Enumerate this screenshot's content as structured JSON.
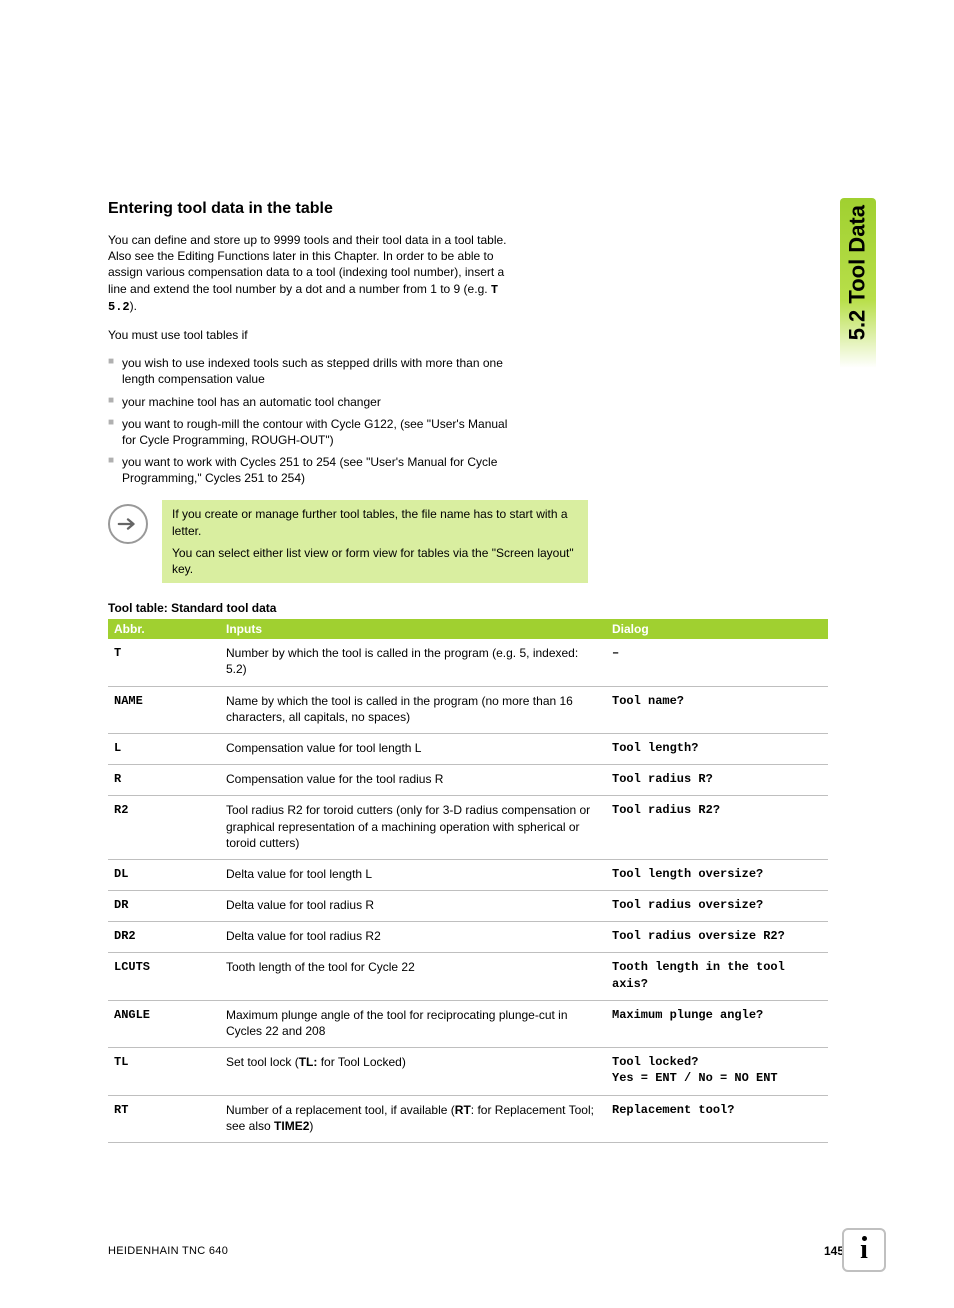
{
  "side_tab": "5.2 Tool Data",
  "section_title": "Entering tool data in the table",
  "intro_p1_a": "You can define and store up to 9999 tools and their tool data in a tool table. Also see the Editing Functions later in this Chapter. In order to be able to assign various compensation data to a tool (indexing tool number), insert a line and extend the tool number by a dot and a number from 1 to 9 (e.g. ",
  "intro_p1_mono": "T 5.2",
  "intro_p1_b": ").",
  "intro_p2": "You must use tool tables if",
  "bullets": [
    "you wish to use indexed tools such as stepped drills with more than one length compensation value",
    "your machine tool has an automatic tool changer",
    "you want to rough-mill the contour with Cycle G122, (see \"User's Manual for Cycle Programming, ROUGH-OUT\")",
    "you want to work with Cycles 251 to 254 (see \"User's Manual for Cycle Programming,\" Cycles 251 to 254)"
  ],
  "note_p1": "If you create or manage further tool tables, the file name has to start with a letter.",
  "note_p2": "You can select either list view or form view for tables via the \"Screen layout\" key.",
  "table_caption": "Tool table: Standard tool data",
  "table_headers": {
    "abbr": "Abbr.",
    "inputs": "Inputs",
    "dialog": "Dialog"
  },
  "rows": [
    {
      "abbr": "T",
      "inputs": "Number by which the tool is called in the program (e.g. 5, indexed: 5.2)",
      "dialog": "–"
    },
    {
      "abbr": "NAME",
      "inputs": "Name by which the tool is called in the program (no more than 16 characters, all capitals, no spaces)",
      "dialog": "Tool name?"
    },
    {
      "abbr": "L",
      "inputs": "Compensation value for tool length L",
      "dialog": "Tool length?"
    },
    {
      "abbr": "R",
      "inputs": "Compensation value for the tool radius R",
      "dialog": "Tool radius R?"
    },
    {
      "abbr": "R2",
      "inputs": "Tool radius R2 for toroid cutters (only for 3-D radius compensation or graphical representation of a machining operation with spherical or toroid cutters)",
      "dialog": "Tool radius R2?"
    },
    {
      "abbr": "DL",
      "inputs": "Delta value for tool length L",
      "dialog": "Tool length oversize?"
    },
    {
      "abbr": "DR",
      "inputs": "Delta value for tool radius R",
      "dialog": "Tool radius oversize?"
    },
    {
      "abbr": "DR2",
      "inputs": "Delta value for tool radius R2",
      "dialog": "Tool radius oversize R2?"
    },
    {
      "abbr": "LCUTS",
      "inputs": "Tooth length of the tool for Cycle 22",
      "dialog": "Tooth length in the tool axis?"
    },
    {
      "abbr": "ANGLE",
      "inputs": "Maximum plunge angle of the tool for reciprocating plunge-cut in Cycles 22 and 208",
      "dialog": "Maximum plunge angle?"
    },
    {
      "abbr": "TL",
      "inputs_html": "Set tool lock (<b>TL:</b> for Tool Locked)",
      "dialog": "Tool locked?\nYes = ENT / No = NO ENT"
    },
    {
      "abbr": "RT",
      "inputs_html": "Number of a replacement tool, if available (<b>RT</b>: for Replacement Tool; see also <b>TIME2</b>)",
      "dialog": "Replacement tool?"
    }
  ],
  "footer": {
    "product": "HEIDENHAIN TNC 640",
    "page": "145"
  },
  "colors": {
    "accent_green": "#a0d030",
    "note_bg": "#d9eea0",
    "header_text": "#ffffff",
    "bullet_gray": "#b0b0b0",
    "border_gray": "#bfbfbf"
  }
}
